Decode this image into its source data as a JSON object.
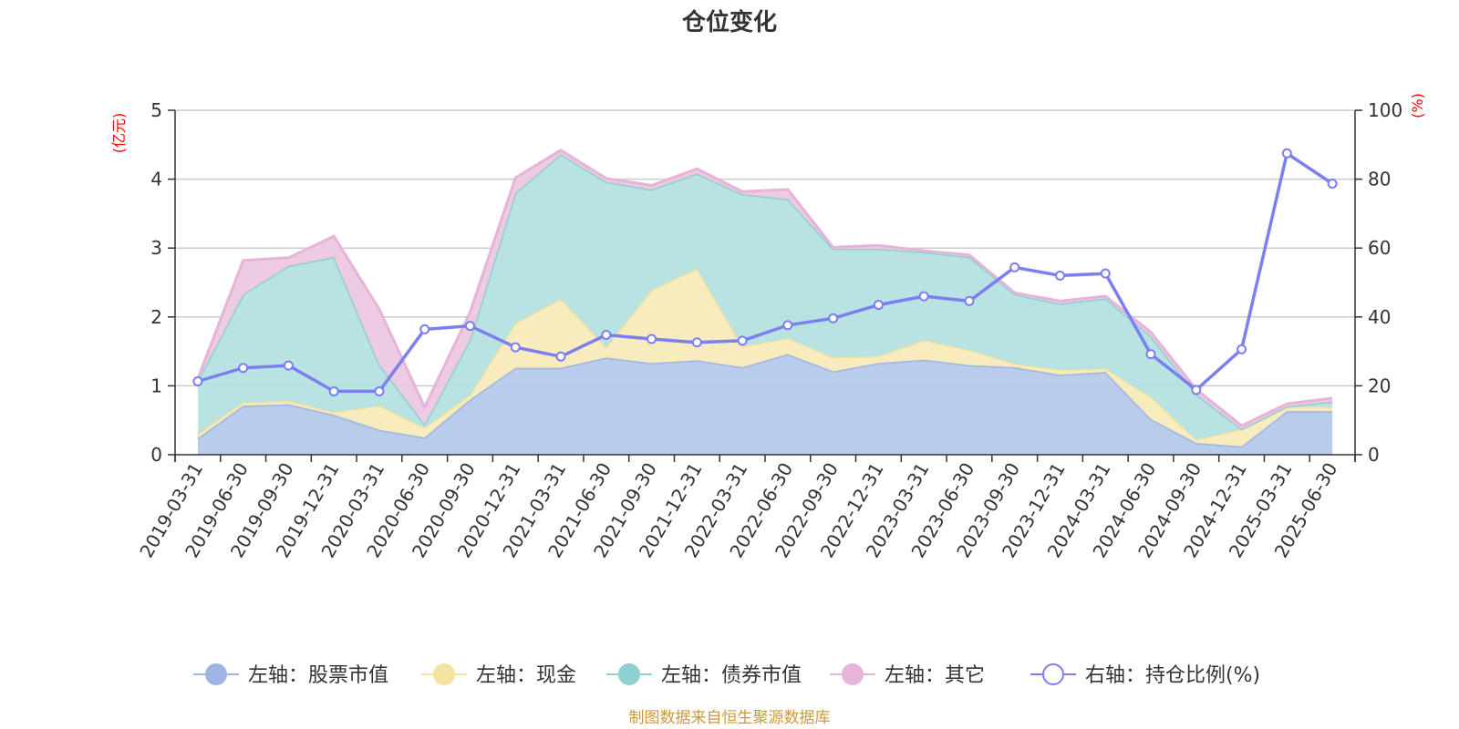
{
  "chart_data": {
    "type": "area",
    "title": "仓位变化",
    "left_axis_unit": "(亿元)",
    "right_axis_unit": "(%)",
    "left_ylim": [
      0,
      5
    ],
    "left_ticks": [
      "0",
      "1",
      "2",
      "3",
      "4",
      "5"
    ],
    "right_ylim": [
      0,
      100
    ],
    "right_ticks": [
      "0",
      "20",
      "40",
      "60",
      "80",
      "100"
    ],
    "grid": true,
    "legend_position": "bottom",
    "categories": [
      "2019-03-31",
      "2019-06-30",
      "2019-09-30",
      "2019-12-31",
      "2020-03-31",
      "2020-06-30",
      "2020-09-30",
      "2020-12-31",
      "2021-03-31",
      "2021-06-30",
      "2021-09-30",
      "2021-12-31",
      "2022-03-31",
      "2022-06-30",
      "2022-09-30",
      "2022-12-31",
      "2023-03-31",
      "2023-06-30",
      "2023-09-30",
      "2023-12-31",
      "2024-03-31",
      "2024-06-30",
      "2024-09-30",
      "2024-12-31",
      "2025-03-31",
      "2025-06-30"
    ],
    "stacked_series": [
      {
        "name": "左轴：股票市值",
        "color": "#9db5e3",
        "fill": "#b6c9ea",
        "values": [
          0.24,
          0.71,
          0.73,
          0.58,
          0.36,
          0.25,
          0.8,
          1.26,
          1.26,
          1.41,
          1.33,
          1.37,
          1.27,
          1.46,
          1.21,
          1.33,
          1.38,
          1.3,
          1.27,
          1.16,
          1.2,
          0.52,
          0.17,
          0.12,
          0.63,
          0.63
        ]
      },
      {
        "name": "左轴：现金",
        "color": "#f5e3a0",
        "fill": "#f8eabb",
        "values": [
          0.06,
          0.05,
          0.05,
          0.04,
          0.35,
          0.14,
          0.07,
          0.65,
          1.0,
          0.15,
          1.06,
          1.33,
          0.3,
          0.23,
          0.2,
          0.1,
          0.28,
          0.22,
          0.05,
          0.07,
          0.05,
          0.32,
          0.05,
          0.25,
          0.07,
          0.06
        ]
      },
      {
        "name": "左轴：债券市值",
        "color": "#8fd0d0",
        "fill": "#b5e1e0",
        "values": [
          0.77,
          1.57,
          1.96,
          2.25,
          0.6,
          0.05,
          0.8,
          1.89,
          2.1,
          2.4,
          1.46,
          1.38,
          2.21,
          2.02,
          1.58,
          1.56,
          1.28,
          1.35,
          1.01,
          0.96,
          1.02,
          0.88,
          0.66,
          0,
          0,
          0.08
        ]
      },
      {
        "name": "左轴：其它",
        "color": "#e7b4d9",
        "fill": "#ecc8e1",
        "values": [
          0.03,
          0.49,
          0.12,
          0.3,
          0.8,
          0.25,
          0.4,
          0.22,
          0.06,
          0.05,
          0.06,
          0.07,
          0.04,
          0.14,
          0.02,
          0.05,
          0.02,
          0.03,
          0.02,
          0.04,
          0.03,
          0.06,
          0.07,
          0.05,
          0.04,
          0.05
        ]
      }
    ],
    "line_series": {
      "name": "右轴：持仓比例(%)",
      "color": "#7b7ff0",
      "values": [
        21.3,
        25.2,
        25.9,
        18.4,
        18.4,
        36.4,
        37.4,
        31.2,
        28.5,
        34.8,
        33.6,
        32.6,
        33.1,
        37.6,
        39.6,
        43.5,
        46.0,
        44.6,
        54.4,
        52.0,
        52.6,
        29.2,
        18.8,
        30.6,
        87.5,
        78.7
      ]
    },
    "footer": "制图数据来自恒生聚源数据库"
  }
}
